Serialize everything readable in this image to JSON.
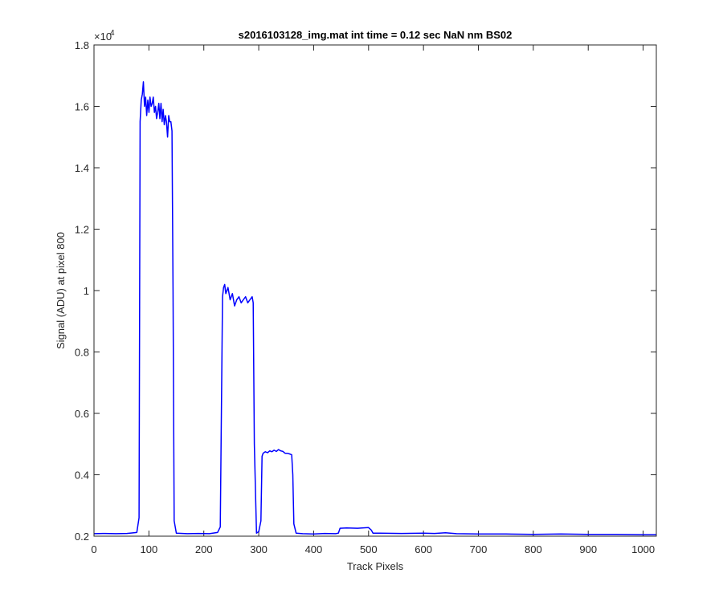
{
  "chart_data": {
    "type": "line",
    "title": "s2016103128_img.mat int time = 0.12 sec  NaN nm BS02",
    "xlabel": "Track Pixels",
    "ylabel": "Signal (ADU) at pixel 800",
    "y_exponent_label": "×10",
    "y_exponent_power": "4",
    "xlim": [
      0,
      1024
    ],
    "ylim": [
      0.2,
      1.8
    ],
    "y_scale_factor": 10000,
    "xticks": [
      0,
      100,
      200,
      300,
      400,
      500,
      600,
      700,
      800,
      900,
      1000
    ],
    "xtick_labels": [
      "0",
      "100",
      "200",
      "300",
      "400",
      "500",
      "600",
      "700",
      "800",
      "900",
      "1000"
    ],
    "yticks": [
      0.2,
      0.4,
      0.6,
      0.8,
      1.0,
      1.2,
      1.4,
      1.6,
      1.8
    ],
    "ytick_labels": [
      "0.2",
      "0.4",
      "0.6",
      "0.8",
      "1",
      "1.2",
      "1.4",
      "1.6",
      "1.8"
    ],
    "grid": false,
    "box": true,
    "series": [
      {
        "color": "#0000ff",
        "x": [
          0,
          20,
          40,
          60,
          78,
          82,
          84,
          86,
          88,
          90,
          92,
          94,
          96,
          98,
          100,
          102,
          104,
          106,
          108,
          110,
          112,
          114,
          116,
          118,
          120,
          122,
          124,
          126,
          128,
          130,
          132,
          134,
          136,
          138,
          140,
          142,
          144,
          146,
          150,
          170,
          190,
          210,
          225,
          230,
          234,
          236,
          238,
          240,
          244,
          248,
          252,
          256,
          260,
          264,
          268,
          272,
          276,
          280,
          284,
          288,
          290,
          292,
          296,
          300,
          304,
          306,
          308,
          312,
          316,
          320,
          324,
          328,
          332,
          336,
          340,
          344,
          348,
          352,
          356,
          360,
          362,
          364,
          368,
          380,
          400,
          420,
          440,
          445,
          448,
          460,
          480,
          500,
          505,
          508,
          520,
          560,
          600,
          620,
          640,
          660,
          700,
          750,
          800,
          850,
          900,
          950,
          1000,
          1024
        ],
        "y": [
          0.208,
          0.209,
          0.208,
          0.209,
          0.212,
          0.26,
          1.55,
          1.62,
          1.64,
          1.68,
          1.6,
          1.63,
          1.57,
          1.62,
          1.58,
          1.63,
          1.6,
          1.61,
          1.63,
          1.58,
          1.6,
          1.56,
          1.58,
          1.61,
          1.56,
          1.61,
          1.55,
          1.59,
          1.54,
          1.57,
          1.55,
          1.5,
          1.57,
          1.55,
          1.55,
          1.52,
          1.0,
          0.25,
          0.21,
          0.208,
          0.209,
          0.208,
          0.212,
          0.23,
          0.98,
          1.01,
          1.02,
          0.99,
          1.01,
          0.97,
          0.99,
          0.95,
          0.97,
          0.98,
          0.96,
          0.97,
          0.98,
          0.96,
          0.97,
          0.98,
          0.96,
          0.5,
          0.21,
          0.215,
          0.25,
          0.46,
          0.47,
          0.475,
          0.472,
          0.478,
          0.475,
          0.48,
          0.476,
          0.482,
          0.478,
          0.476,
          0.47,
          0.47,
          0.468,
          0.465,
          0.4,
          0.24,
          0.21,
          0.208,
          0.207,
          0.209,
          0.208,
          0.21,
          0.226,
          0.227,
          0.226,
          0.228,
          0.22,
          0.21,
          0.21,
          0.209,
          0.21,
          0.209,
          0.211,
          0.208,
          0.207,
          0.207,
          0.206,
          0.207,
          0.206,
          0.206,
          0.205,
          0.205
        ]
      }
    ]
  }
}
